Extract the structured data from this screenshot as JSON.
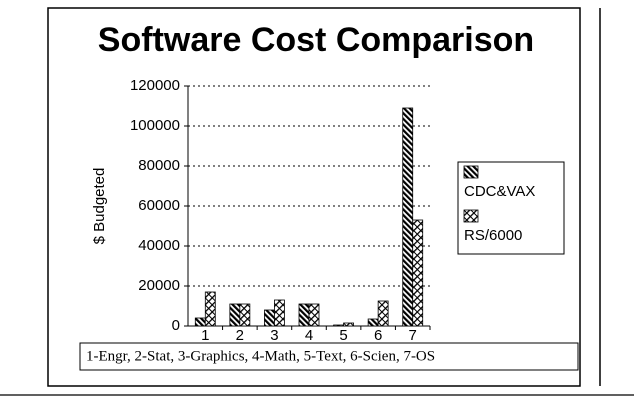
{
  "chart_data": {
    "type": "bar",
    "title": "Software Cost Comparison",
    "y_label": "$ Budgeted",
    "categories": [
      "1",
      "2",
      "3",
      "4",
      "5",
      "6",
      "7"
    ],
    "series": [
      {
        "name": "CDC&VAX",
        "values": [
          4000,
          11000,
          8000,
          11000,
          500,
          3500,
          109000
        ]
      },
      {
        "name": "RS/6000",
        "values": [
          17000,
          11000,
          13000,
          11000,
          1500,
          12500,
          53000
        ]
      }
    ],
    "ylim": [
      0,
      120000
    ],
    "yticks": [
      0,
      20000,
      40000,
      60000,
      80000,
      100000,
      120000
    ],
    "grid": true,
    "legend": "right",
    "annotation": "1-Engr, 2-Stat, 3-Graphics, 4-Math, 5-Text, 6-Scien, 7-OS"
  }
}
